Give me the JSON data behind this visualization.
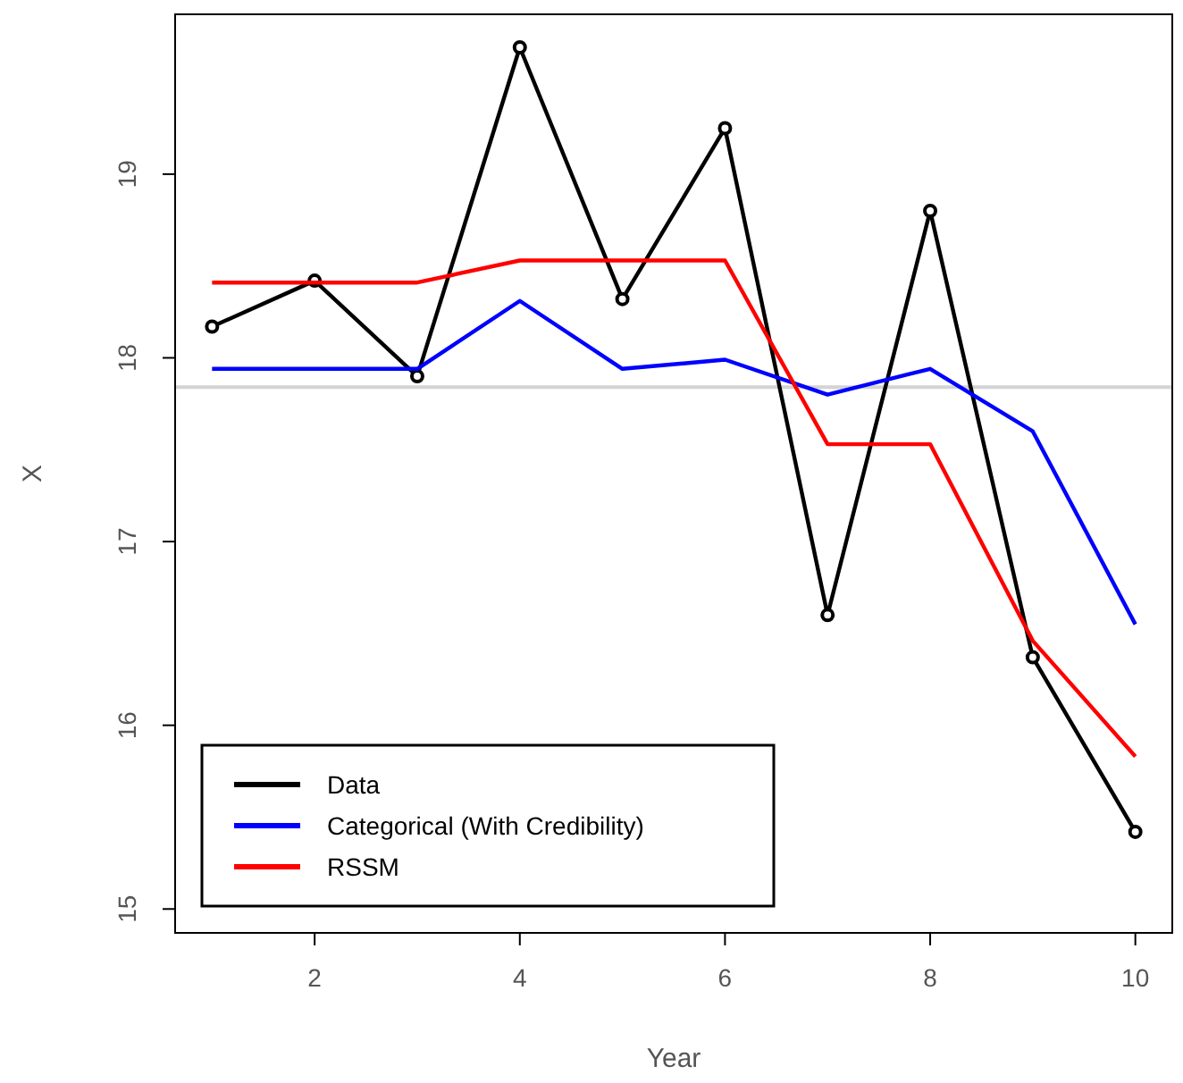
{
  "chart_data": {
    "type": "line",
    "xlabel": "Year",
    "ylabel": "X",
    "x": [
      1,
      2,
      3,
      4,
      5,
      6,
      7,
      8,
      9,
      10
    ],
    "series": [
      {
        "name": "Data",
        "color": "#000000",
        "marker": "circle",
        "values": [
          18.17,
          18.42,
          17.9,
          19.69,
          18.32,
          19.25,
          16.6,
          18.8,
          16.37,
          15.42
        ]
      },
      {
        "name": "Categorical (With Credibility)",
        "color": "#0000ff",
        "marker": "none",
        "values": [
          17.94,
          17.94,
          17.94,
          18.31,
          17.94,
          17.99,
          17.8,
          17.94,
          17.6,
          16.55
        ]
      },
      {
        "name": "RSSM",
        "color": "#ff0000",
        "marker": "none",
        "values": [
          18.41,
          18.41,
          18.41,
          18.53,
          18.53,
          18.53,
          17.53,
          17.53,
          16.46,
          15.83
        ]
      }
    ],
    "xlim": [
      0.64,
      10.36
    ],
    "ylim": [
      14.87,
      19.87
    ],
    "xticks": [
      2,
      4,
      6,
      8,
      10
    ],
    "yticks": [
      15,
      16,
      17,
      18,
      19
    ],
    "ref_lines": [
      {
        "axis": "y",
        "value": 17.84,
        "color": "#d3d3d3"
      }
    ],
    "legend": "bottom left",
    "grid": false,
    "line_style": "solid"
  }
}
